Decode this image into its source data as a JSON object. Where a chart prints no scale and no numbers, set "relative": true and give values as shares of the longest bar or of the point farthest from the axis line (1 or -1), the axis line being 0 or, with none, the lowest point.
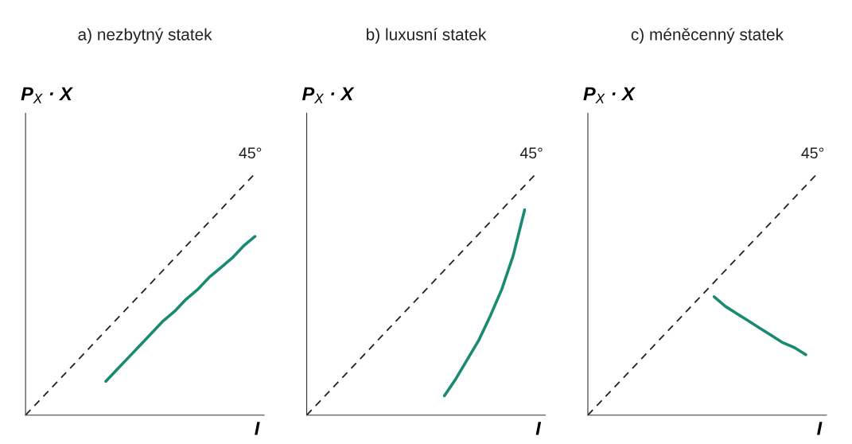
{
  "chart_data": [
    {
      "type": "line",
      "title": "a) nezbytný statek",
      "xlabel": "I",
      "ylabel": "P$_{X}$ · X",
      "relative": true,
      "marker": "none",
      "categories": [
        null,
        null,
        null,
        null,
        null,
        null,
        null,
        null,
        null,
        null,
        null,
        null,
        null,
        null,
        null,
        null,
        null,
        null,
        null,
        null,
        null
      ],
      "series": [
        {
          "name": "45°",
          "color": "#222222",
          "line_style": "dashed",
          "values": [
            0,
            0.05,
            0.1,
            0.15,
            0.2,
            0.25,
            0.3,
            0.35,
            0.4,
            0.45,
            0.5,
            0.55,
            0.6,
            0.65,
            0.7,
            0.75,
            0.8,
            0.85,
            0.9,
            0.95,
            1
          ]
        },
        {
          "color": "#1a8a72",
          "line_style": "solid",
          "values": [
            null,
            null,
            null,
            null,
            null,
            null,
            null,
            0.14,
            0.19,
            0.24,
            0.29,
            0.34,
            0.39,
            0.43,
            0.48,
            0.52,
            0.57,
            0.61,
            0.65,
            0.7,
            0.74
          ]
        }
      ]
    },
    {
      "type": "line",
      "title": "b) luxusní statek",
      "xlabel": "I",
      "ylabel": "P$_{X}$ · X",
      "relative": true,
      "marker": "none",
      "categories": [
        null,
        null,
        null,
        null,
        null,
        null,
        null,
        null,
        null,
        null,
        null,
        null,
        null,
        null,
        null,
        null,
        null,
        null,
        null,
        null,
        null
      ],
      "series": [
        {
          "name": "45°",
          "color": "#222222",
          "line_style": "dashed",
          "values": [
            0,
            0.05,
            0.1,
            0.15,
            0.2,
            0.25,
            0.3,
            0.35,
            0.4,
            0.45,
            0.5,
            0.55,
            0.6,
            0.65,
            0.7,
            0.75,
            0.8,
            0.85,
            0.9,
            0.95,
            1
          ]
        },
        {
          "color": "#1a8a72",
          "line_style": "solid",
          "values": [
            null,
            null,
            null,
            null,
            null,
            null,
            null,
            null,
            null,
            null,
            null,
            null,
            0.08,
            0.15,
            0.23,
            0.31,
            0.41,
            0.52,
            0.66,
            0.85,
            null
          ]
        }
      ]
    },
    {
      "type": "line",
      "title": "c) méněcenný statek",
      "xlabel": "I",
      "ylabel": "P$_{X}$ · X",
      "relative": true,
      "marker": "none",
      "categories": [
        null,
        null,
        null,
        null,
        null,
        null,
        null,
        null,
        null,
        null,
        null,
        null,
        null,
        null,
        null,
        null,
        null,
        null,
        null,
        null,
        null
      ],
      "series": [
        {
          "name": "45°",
          "color": "#222222",
          "line_style": "dashed",
          "values": [
            0,
            0.05,
            0.1,
            0.15,
            0.2,
            0.25,
            0.3,
            0.35,
            0.4,
            0.45,
            0.5,
            0.55,
            0.6,
            0.65,
            0.7,
            0.75,
            0.8,
            0.85,
            0.9,
            0.95,
            1
          ]
        },
        {
          "color": "#1a8a72",
          "line_style": "solid",
          "values": [
            null,
            null,
            null,
            null,
            null,
            null,
            null,
            null,
            null,
            null,
            null,
            0.49,
            0.45,
            0.42,
            0.39,
            0.36,
            0.33,
            0.3,
            0.28,
            0.25,
            null
          ]
        }
      ]
    }
  ]
}
